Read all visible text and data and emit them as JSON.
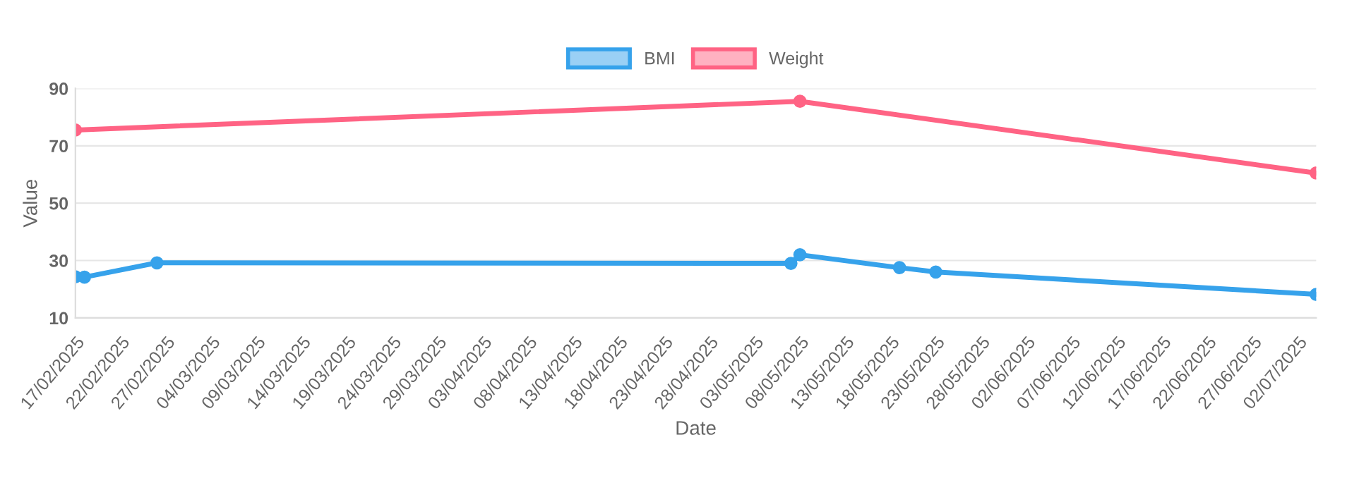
{
  "chart_data": {
    "type": "line",
    "xlabel": "Date",
    "ylabel": "Value",
    "xlim": [
      "2025-02-17",
      "2025-07-04"
    ],
    "xticks": [
      {
        "value": "2025-02-17",
        "label": "17/02/2025"
      },
      {
        "value": "2025-02-22",
        "label": "22/02/2025"
      },
      {
        "value": "2025-02-27",
        "label": "27/02/2025"
      },
      {
        "value": "2025-03-04",
        "label": "04/03/2025"
      },
      {
        "value": "2025-03-09",
        "label": "09/03/2025"
      },
      {
        "value": "2025-03-14",
        "label": "14/03/2025"
      },
      {
        "value": "2025-03-19",
        "label": "19/03/2025"
      },
      {
        "value": "2025-03-24",
        "label": "24/03/2025"
      },
      {
        "value": "2025-03-29",
        "label": "29/03/2025"
      },
      {
        "value": "2025-04-03",
        "label": "03/04/2025"
      },
      {
        "value": "2025-04-08",
        "label": "08/04/2025"
      },
      {
        "value": "2025-04-13",
        "label": "13/04/2025"
      },
      {
        "value": "2025-04-18",
        "label": "18/04/2025"
      },
      {
        "value": "2025-04-23",
        "label": "23/04/2025"
      },
      {
        "value": "2025-04-28",
        "label": "28/04/2025"
      },
      {
        "value": "2025-05-03",
        "label": "03/05/2025"
      },
      {
        "value": "2025-05-08",
        "label": "08/05/2025"
      },
      {
        "value": "2025-05-13",
        "label": "13/05/2025"
      },
      {
        "value": "2025-05-18",
        "label": "18/05/2025"
      },
      {
        "value": "2025-05-23",
        "label": "23/05/2025"
      },
      {
        "value": "2025-05-28",
        "label": "28/05/2025"
      },
      {
        "value": "2025-06-02",
        "label": "02/06/2025"
      },
      {
        "value": "2025-06-07",
        "label": "07/06/2025"
      },
      {
        "value": "2025-06-12",
        "label": "12/06/2025"
      },
      {
        "value": "2025-06-17",
        "label": "17/06/2025"
      },
      {
        "value": "2025-06-22",
        "label": "22/06/2025"
      },
      {
        "value": "2025-06-27",
        "label": "27/06/2025"
      },
      {
        "value": "2025-07-02",
        "label": "02/07/2025"
      }
    ],
    "ylim": [
      10,
      90
    ],
    "yticks": [
      10,
      30,
      50,
      70,
      90
    ],
    "grid": "y",
    "legend": "top",
    "marker": "circle",
    "line_style": "solid",
    "series": [
      {
        "name": "BMI",
        "color": "#36a2eb",
        "x": [
          "2025-02-17",
          "2025-02-18",
          "2025-02-26",
          "2025-05-07",
          "2025-05-08",
          "2025-05-19",
          "2025-05-23",
          "2025-07-04"
        ],
        "values": [
          24.3,
          24.2,
          29.2,
          29,
          32,
          27.5,
          26,
          18.2
        ]
      },
      {
        "name": "Weight",
        "color": "#ff6384",
        "x": [
          "2025-02-17",
          "2025-05-08",
          "2025-07-04"
        ],
        "values": [
          75.5,
          85.5,
          60.5
        ]
      }
    ]
  }
}
